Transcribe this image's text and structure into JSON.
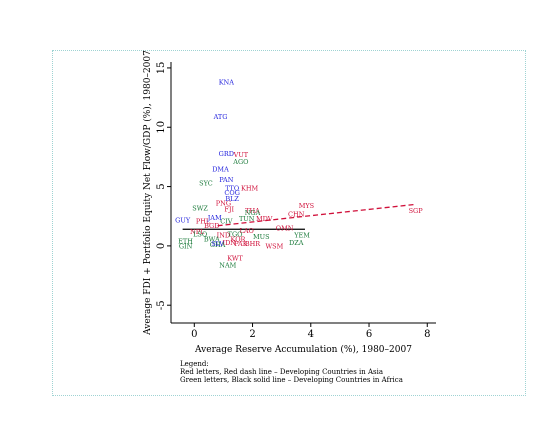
{
  "chart_data": {
    "type": "scatter",
    "xlabel": "Average Reserve Accumulation (%), 1980–2007",
    "ylabel": "Average FDI + Portfolio Equity Net Flow/GDP (%), 1980–2007",
    "xlim": [
      -0.8,
      8.3
    ],
    "ylim": [
      -6.5,
      15.5
    ],
    "x_ticks": [
      0,
      2,
      4,
      6,
      8
    ],
    "y_ticks": [
      -5,
      0,
      5,
      10,
      15
    ],
    "grid": false,
    "colors": {
      "asia": "#d0103a",
      "africa": "#1a7a3a",
      "other": "#2222dd"
    },
    "series": [
      {
        "key": "asia",
        "color": "#d0103a",
        "points": [
          {
            "label": "VUT",
            "x": 1.6,
            "y": 7.7
          },
          {
            "label": "KHM",
            "x": 1.9,
            "y": 4.9
          },
          {
            "label": "MYS",
            "x": 3.85,
            "y": 3.4
          },
          {
            "label": "CHN",
            "x": 3.5,
            "y": 2.7
          },
          {
            "label": "SGP",
            "x": 7.6,
            "y": 3.0
          },
          {
            "label": "OMN",
            "x": 3.1,
            "y": 1.5
          },
          {
            "label": "WSM",
            "x": 2.75,
            "y": 0.0
          },
          {
            "label": "KWT",
            "x": 1.4,
            "y": -1.0
          },
          {
            "label": "PNG",
            "x": 1.0,
            "y": 3.6
          },
          {
            "label": "FJI",
            "x": 1.2,
            "y": 3.1
          },
          {
            "label": "THA",
            "x": 2.0,
            "y": 3.0
          },
          {
            "label": "MDV",
            "x": 2.4,
            "y": 2.3
          },
          {
            "label": "LAO",
            "x": 1.8,
            "y": 1.3
          },
          {
            "label": "IND",
            "x": 1.0,
            "y": 0.9
          },
          {
            "label": "KOR",
            "x": 1.5,
            "y": 0.6
          },
          {
            "label": "IDN",
            "x": 1.2,
            "y": 0.3
          },
          {
            "label": "BGD",
            "x": 0.6,
            "y": 1.7
          },
          {
            "label": "PHL",
            "x": 0.3,
            "y": 2.1
          },
          {
            "label": "NPL",
            "x": 0.1,
            "y": 1.2
          },
          {
            "label": "BHR",
            "x": 2.0,
            "y": 0.2
          },
          {
            "label": "PAK",
            "x": 1.6,
            "y": 0.2
          }
        ]
      },
      {
        "key": "africa",
        "color": "#1a7a3a",
        "points": [
          {
            "label": "AGO",
            "x": 1.6,
            "y": 7.1
          },
          {
            "label": "SYC",
            "x": 0.4,
            "y": 5.3
          },
          {
            "label": "SWZ",
            "x": 0.2,
            "y": 3.2
          },
          {
            "label": "NGA",
            "x": 2.0,
            "y": 2.8
          },
          {
            "label": "TUN",
            "x": 1.8,
            "y": 2.3
          },
          {
            "label": "YEM",
            "x": 3.7,
            "y": 0.9
          },
          {
            "label": "DZA",
            "x": 3.5,
            "y": 0.3
          },
          {
            "label": "NAM",
            "x": 1.15,
            "y": -1.6
          },
          {
            "label": "LSO",
            "x": 0.2,
            "y": 1.0
          },
          {
            "label": "CIV",
            "x": 1.1,
            "y": 2.1
          },
          {
            "label": "MUS",
            "x": 2.3,
            "y": 0.8
          },
          {
            "label": "BWA",
            "x": 0.6,
            "y": 0.6
          },
          {
            "label": "TGO",
            "x": 1.4,
            "y": 1.0
          },
          {
            "label": "GHA",
            "x": 0.8,
            "y": 0.1
          },
          {
            "label": "ETH",
            "x": -0.3,
            "y": 0.4
          },
          {
            "label": "GIN",
            "x": -0.3,
            "y": 0.0
          }
        ]
      },
      {
        "key": "other",
        "color": "#2222dd",
        "points": [
          {
            "label": "KNA",
            "x": 1.1,
            "y": 13.8
          },
          {
            "label": "ATG",
            "x": 0.9,
            "y": 10.9
          },
          {
            "label": "GRD",
            "x": 1.1,
            "y": 7.8
          },
          {
            "label": "DMA",
            "x": 0.9,
            "y": 6.5
          },
          {
            "label": "PAN",
            "x": 1.1,
            "y": 5.6
          },
          {
            "label": "TTO",
            "x": 1.3,
            "y": 4.9
          },
          {
            "label": "COG",
            "x": 1.3,
            "y": 4.5
          },
          {
            "label": "BLZ",
            "x": 1.3,
            "y": 4.0
          },
          {
            "label": "GUY",
            "x": -0.4,
            "y": 2.2
          },
          {
            "label": "JAM",
            "x": 0.7,
            "y": 2.4
          },
          {
            "label": "SLV",
            "x": 0.8,
            "y": 0.2
          }
        ]
      }
    ],
    "fit_lines": [
      {
        "key": "asia",
        "style": "dashed",
        "color": "#d0103a",
        "x": [
          0.8,
          7.6
        ],
        "y": [
          1.7,
          3.5
        ]
      },
      {
        "key": "africa",
        "style": "solid",
        "color": "#000000",
        "x": [
          -0.4,
          3.8
        ],
        "y": [
          1.4,
          1.4
        ]
      }
    ],
    "legend": {
      "title": "Legend:",
      "lines": [
        "Red letters, Red dash line – Developing Countries in Asia",
        "Green letters, Black solid line – Developing Countries in Africa"
      ]
    }
  }
}
